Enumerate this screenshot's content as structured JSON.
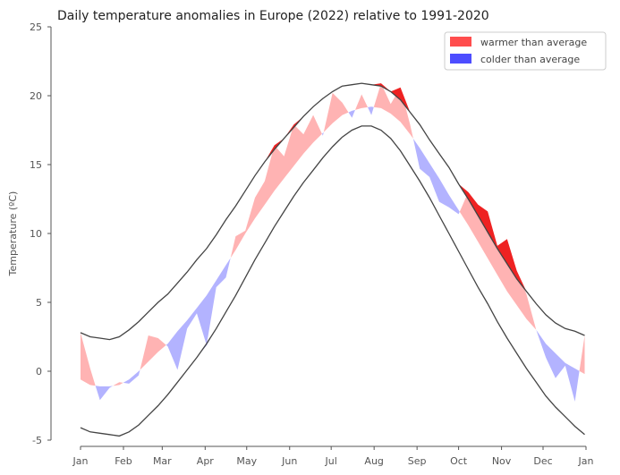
{
  "chart_data": {
    "type": "area",
    "title": "Daily temperature anomalies in Europe (2022) relative to 1991-2020",
    "ylabel": "Temperature (ºC)",
    "xlabel": "",
    "ylim": [
      -5,
      25
    ],
    "y_ticks": [
      -5,
      0,
      5,
      10,
      15,
      20,
      25
    ],
    "x_range": [
      "2022-01-01",
      "2023-01-01"
    ],
    "x_tick_labels": [
      "Jan",
      "Feb",
      "Mar",
      "Apr",
      "May",
      "Jun",
      "Jul",
      "Aug",
      "Sep",
      "Oct",
      "Nov",
      "Dec",
      "Jan"
    ],
    "legend": {
      "position": "top-right",
      "entries": [
        {
          "label": "warmer than average",
          "color": "#ff4d4d"
        },
        {
          "label": "colder than average",
          "color": "#4d4dff"
        }
      ]
    },
    "colors": {
      "warm_fill": "#ffb3b3",
      "cold_fill": "#b3b3ff",
      "warm_extreme": "#ee2222",
      "cold_extreme": "#3333dd",
      "climatology_line": "#444444"
    },
    "grid": false,
    "x": [
      "2022-01-01",
      "2022-01-08",
      "2022-01-15",
      "2022-01-22",
      "2022-01-29",
      "2022-02-05",
      "2022-02-12",
      "2022-02-19",
      "2022-02-26",
      "2022-03-05",
      "2022-03-12",
      "2022-03-19",
      "2022-03-26",
      "2022-04-02",
      "2022-04-09",
      "2022-04-16",
      "2022-04-23",
      "2022-04-30",
      "2022-05-07",
      "2022-05-14",
      "2022-05-21",
      "2022-05-28",
      "2022-06-04",
      "2022-06-11",
      "2022-06-18",
      "2022-06-25",
      "2022-07-02",
      "2022-07-09",
      "2022-07-16",
      "2022-07-23",
      "2022-07-30",
      "2022-08-06",
      "2022-08-13",
      "2022-08-20",
      "2022-08-27",
      "2022-09-03",
      "2022-09-10",
      "2022-09-17",
      "2022-09-24",
      "2022-10-01",
      "2022-10-08",
      "2022-10-15",
      "2022-10-22",
      "2022-10-29",
      "2022-11-05",
      "2022-11-12",
      "2022-11-19",
      "2022-11-26",
      "2022-12-03",
      "2022-12-10",
      "2022-12-17",
      "2022-12-24",
      "2022-12-31"
    ],
    "series": [
      {
        "role": "upper",
        "values": [
          2.8,
          2.5,
          2.4,
          2.3,
          2.5,
          3.0,
          3.6,
          4.3,
          5.0,
          5.6,
          6.4,
          7.2,
          8.1,
          8.9,
          9.9,
          11.0,
          12.0,
          13.1,
          14.2,
          15.2,
          16.1,
          16.9,
          17.7,
          18.5,
          19.2,
          19.8,
          20.3,
          20.7,
          20.8,
          20.9,
          20.8,
          20.7,
          20.3,
          19.7,
          18.8,
          17.9,
          16.8,
          15.8,
          14.8,
          13.6,
          12.5,
          11.3,
          10.1,
          8.9,
          7.8,
          6.7,
          5.8,
          4.9,
          4.1,
          3.5,
          3.1,
          2.9,
          2.6
        ]
      },
      {
        "role": "mean",
        "values": [
          -0.6,
          -1.0,
          -1.1,
          -1.1,
          -1.0,
          -0.6,
          0.0,
          0.7,
          1.4,
          2.0,
          2.9,
          3.7,
          4.6,
          5.5,
          6.6,
          7.7,
          8.8,
          10.0,
          11.1,
          12.1,
          13.1,
          14.0,
          14.9,
          15.8,
          16.6,
          17.3,
          18.0,
          18.6,
          18.9,
          19.1,
          19.2,
          19.1,
          18.7,
          18.1,
          17.2,
          16.2,
          15.1,
          14.0,
          12.8,
          11.7,
          10.6,
          9.4,
          8.2,
          7.0,
          5.8,
          4.8,
          3.8,
          3.0,
          2.0,
          1.3,
          0.6,
          0.2,
          -0.2
        ]
      },
      {
        "role": "lower",
        "values": [
          -4.1,
          -4.4,
          -4.5,
          -4.6,
          -4.7,
          -4.4,
          -3.9,
          -3.2,
          -2.5,
          -1.7,
          -0.8,
          0.1,
          1.0,
          2.0,
          3.1,
          4.3,
          5.5,
          6.8,
          8.1,
          9.3,
          10.5,
          11.6,
          12.7,
          13.7,
          14.6,
          15.5,
          16.3,
          17.0,
          17.5,
          17.8,
          17.8,
          17.5,
          16.9,
          16.0,
          14.9,
          13.8,
          12.6,
          11.3,
          10.0,
          8.7,
          7.4,
          6.1,
          4.9,
          3.6,
          2.4,
          1.3,
          0.2,
          -0.8,
          -1.8,
          -2.6,
          -3.3,
          -4.0,
          -4.6
        ]
      },
      {
        "role": "observed",
        "values": [
          2.8,
          0.2,
          -2.1,
          -1.2,
          -0.8,
          -0.9,
          -0.3,
          2.6,
          2.4,
          1.8,
          0.1,
          3.1,
          4.2,
          1.9,
          6.1,
          6.8,
          9.8,
          10.2,
          12.6,
          13.8,
          16.4,
          15.6,
          17.9,
          17.2,
          18.6,
          17.1,
          20.2,
          19.5,
          18.4,
          20.1,
          18.6,
          20.9,
          19.4,
          20.6,
          17.9,
          14.7,
          14.1,
          12.3,
          11.9,
          11.4,
          13.0,
          12.1,
          11.6,
          9.1,
          9.6,
          7.3,
          5.6,
          3.0,
          1.0,
          -0.5,
          0.4,
          -2.2,
          2.6
        ]
      }
    ]
  }
}
